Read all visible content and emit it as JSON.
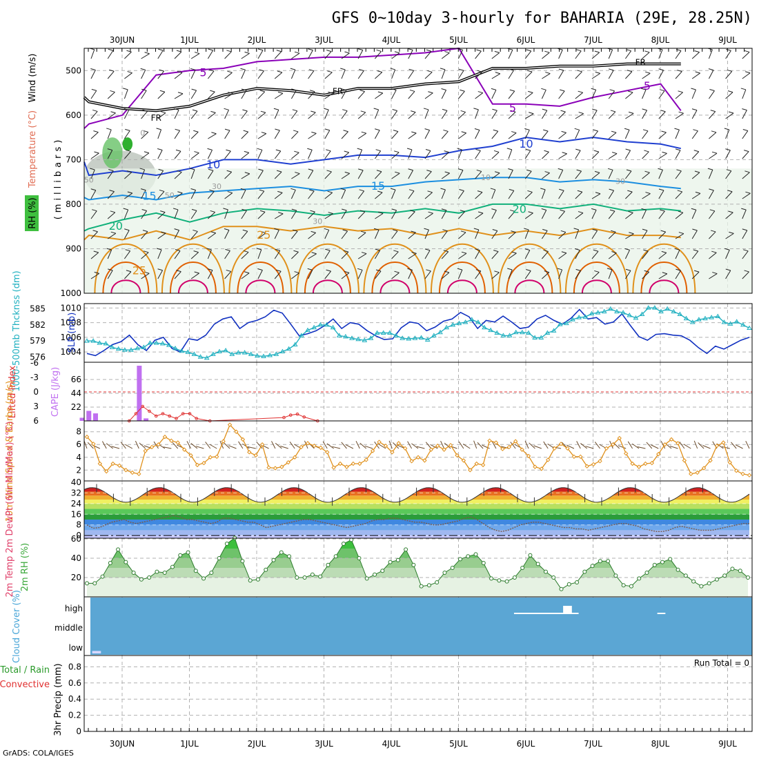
{
  "title": "GFS 0~10day 3-hourly for BAHARIA (29E, 28.25N)",
  "credit": "GrADS: COLA/IGES",
  "run_total": "Run Total = 0",
  "colors": {
    "purple": "#8a00b8",
    "black": "#000000",
    "blue": "#1f3fd0",
    "lightblue": "#1a8ee0",
    "teal": "#10b07a",
    "orange": "#e0901a",
    "darkorange": "#e06000",
    "magenta": "#d0006a",
    "slp": "#1030c0",
    "thk": "#20b0c0",
    "cape": "#c070f0",
    "li": "#e03030",
    "wind": "#e0901a",
    "rh": "#3aa83a",
    "cloud": "#5ba6d4"
  },
  "chart_data": [
    {
      "type": "contour",
      "panel": "upper-air",
      "xlabels": [
        "30JUN",
        "1JUL",
        "2JUL",
        "3JUL",
        "4JUL",
        "5JUL",
        "6JUL",
        "7JUL",
        "8JUL",
        "9JUL"
      ],
      "ylabel": "(millibars)",
      "legend_left": [
        "RH (%)",
        "Temperature (°C)",
        "Wind (m/s)"
      ],
      "yticks": [
        "500",
        "600",
        "700",
        "800",
        "900",
        "1000"
      ],
      "ylim": [
        450,
        1000
      ],
      "contour_labels": [
        {
          "text": "5",
          "day": 2.2,
          "p": 505
        },
        {
          "text": "5",
          "day": 6.8,
          "p": 585
        },
        {
          "text": "5",
          "day": 8.8,
          "p": 535
        },
        {
          "text": "FR",
          "day": 4.2,
          "p": 545
        },
        {
          "text": "FR",
          "day": 1.5,
          "p": 605
        },
        {
          "text": "FR",
          "day": 8.7,
          "p": 480
        },
        {
          "text": "10",
          "day": 2.35,
          "p": 712
        },
        {
          "text": "10",
          "day": 7.0,
          "p": 665
        },
        {
          "text": "15",
          "day": 1.4,
          "p": 782
        },
        {
          "text": "15",
          "day": 4.8,
          "p": 760
        },
        {
          "text": "20",
          "day": 0.9,
          "p": 850
        },
        {
          "text": "20",
          "day": 6.9,
          "p": 812
        },
        {
          "text": "25",
          "day": 3.1,
          "p": 870
        },
        {
          "text": "25",
          "day": 1.25,
          "p": 950
        }
      ],
      "series": [
        {
          "name": "5",
          "color": "purple",
          "days": [
            0,
            0.5,
            1,
            1.5,
            2,
            2.5,
            3,
            3.5,
            4,
            4.5,
            5,
            5.5,
            6,
            6.5,
            7,
            7.5,
            8,
            8.5,
            9,
            9.3
          ],
          "p": [
            630,
            620,
            600,
            510,
            500,
            495,
            480,
            475,
            470,
            470,
            465,
            460,
            450,
            575,
            575,
            580,
            560,
            545,
            530,
            590
          ]
        },
        {
          "name": "FR",
          "color": "black",
          "days": [
            0,
            0.5,
            1,
            1.5,
            2,
            2.5,
            3,
            3.5,
            4,
            4.5,
            5,
            5.5,
            6,
            6.5,
            7,
            7.5,
            8,
            8.5,
            9,
            9.3
          ],
          "p": [
            560,
            570,
            585,
            590,
            580,
            555,
            540,
            545,
            555,
            540,
            540,
            530,
            525,
            495,
            495,
            490,
            490,
            485,
            485,
            485
          ]
        },
        {
          "name": "10",
          "color": "blue",
          "days": [
            0,
            0.5,
            1,
            1.5,
            2,
            2.5,
            3,
            3.5,
            4,
            4.5,
            5,
            5.5,
            6,
            6.5,
            7,
            7.5,
            8,
            8.5,
            9,
            9.3
          ],
          "p": [
            705,
            735,
            725,
            735,
            720,
            700,
            700,
            710,
            700,
            690,
            690,
            695,
            680,
            670,
            650,
            660,
            650,
            660,
            665,
            675
          ]
        },
        {
          "name": "15",
          "color": "lightblue",
          "days": [
            0,
            0.5,
            1,
            1.5,
            2,
            2.5,
            3,
            3.5,
            4,
            4.5,
            5,
            5.5,
            6,
            6.5,
            7,
            7.5,
            8,
            8.5,
            9,
            9.3
          ],
          "p": [
            785,
            790,
            780,
            790,
            775,
            770,
            765,
            760,
            770,
            760,
            760,
            750,
            745,
            740,
            740,
            750,
            745,
            750,
            760,
            765
          ]
        },
        {
          "name": "20",
          "color": "teal",
          "days": [
            0,
            0.5,
            1,
            1.5,
            2,
            2.5,
            3,
            3.5,
            4,
            4.5,
            5,
            5.5,
            6,
            6.5,
            7,
            7.5,
            8,
            8.5,
            9,
            9.3
          ],
          "p": [
            860,
            855,
            835,
            820,
            840,
            820,
            810,
            815,
            825,
            815,
            820,
            810,
            820,
            800,
            800,
            810,
            800,
            815,
            810,
            815
          ]
        },
        {
          "name": "25",
          "color": "orange",
          "days": [
            0,
            0.5,
            1,
            1.5,
            2,
            2.5,
            3,
            3.5,
            4,
            4.5,
            5,
            5.5,
            6,
            6.5,
            7,
            7.5,
            8,
            8.5,
            9,
            9.3
          ],
          "p": [
            880,
            870,
            880,
            860,
            880,
            850,
            850,
            860,
            850,
            860,
            855,
            870,
            855,
            870,
            860,
            870,
            855,
            870,
            870,
            875
          ]
        }
      ],
      "rh_areas": [
        {
          "level": "dark",
          "day0": 0.2,
          "day1": 1.5,
          "p0": 680,
          "p1": 790
        },
        {
          "level": "mid",
          "day0": 0.7,
          "day1": 1.0,
          "p0": 650,
          "p1": 720
        },
        {
          "level": "core",
          "day0": 1.0,
          "day1": 1.15,
          "p0": 650,
          "p1": 680
        },
        {
          "level": "light",
          "day0": 0,
          "day1": 9.3,
          "p0": 720,
          "p1": 1000
        }
      ],
      "rh_labels": [
        {
          "text": "50",
          "day": 0.5,
          "p": 745
        },
        {
          "text": "30",
          "day": 2.4,
          "p": 760
        },
        {
          "text": "50",
          "day": 1.7,
          "p": 780
        },
        {
          "text": "30",
          "day": 3.9,
          "p": 838
        },
        {
          "text": "30",
          "day": 8.4,
          "p": 748
        },
        {
          "text": "10",
          "day": 6.4,
          "p": 740
        },
        {
          "text": "0",
          "day": 1.3,
          "p": 640
        }
      ]
    },
    {
      "type": "line",
      "panel": "thickness-slp",
      "ylabel_left": "1000-500mb Thcknss (dm)",
      "ylabel_right": "SLP (mb)",
      "yticks_left": [
        "576",
        "579",
        "582",
        "585"
      ],
      "yticks_slp": [
        "1004",
        "1006",
        "1008",
        "1010"
      ],
      "ylim_slp": [
        1002.6,
        1010.6
      ],
      "ylim_thk": [
        575,
        586
      ],
      "series": [
        {
          "name": "SLP",
          "color": "slp",
          "values": [
            1003.8,
            1003.5,
            1004.2,
            1005.0,
            1005.4,
            1006.3,
            1005.0,
            1004.2,
            1005.6,
            1006.0,
            1004.5,
            1004.0,
            1005.8,
            1005.6,
            1006.3,
            1007.8,
            1008.5,
            1008.8,
            1007.2,
            1008.0,
            1008.3,
            1008.8,
            1009.7,
            1009.3,
            1007.8,
            1006.2,
            1006.5,
            1006.9,
            1007.6,
            1008.5,
            1007.2,
            1008.0,
            1007.8,
            1006.9,
            1006.2,
            1005.7,
            1005.8,
            1007.3,
            1008.1,
            1007.9,
            1006.9,
            1007.4,
            1008.2,
            1008.5,
            1009.4,
            1008.8,
            1007.2,
            1008.3,
            1008.1,
            1008.9,
            1008.1,
            1007.2,
            1007.4,
            1008.5,
            1009.0,
            1008.3,
            1007.8,
            1008.6,
            1009.8,
            1008.5,
            1008.7,
            1007.8,
            1008.1,
            1009.2,
            1007.6,
            1006.1,
            1005.6,
            1006.4,
            1006.5,
            1006.3,
            1006.2,
            1005.6,
            1004.6,
            1003.8,
            1004.8,
            1004.4,
            1005.0,
            1005.6,
            1006.0
          ]
        },
        {
          "name": "Thickness",
          "color": "thk",
          "values": [
            579.0,
            579.0,
            578.6,
            578.5,
            577.8,
            577.5,
            577.3,
            577.3,
            577.6,
            577.8,
            578.6,
            578.6,
            578.5,
            578.2,
            577.6,
            577.1,
            576.9,
            576.5,
            576.0,
            575.8,
            576.5,
            577.0,
            577.2,
            576.5,
            576.8,
            576.8,
            576.5,
            576.2,
            576.1,
            576.3,
            576.5,
            577.0,
            577.5,
            578.3,
            580.0,
            581.0,
            581.5,
            582.0,
            582.0,
            581.5,
            580.0,
            579.8,
            579.5,
            579.3,
            579.1,
            579.5,
            580.5,
            580.5,
            580.5,
            580.0,
            579.5,
            579.4,
            579.5,
            579.6,
            579.2,
            580.0,
            580.6,
            581.5,
            582.0,
            582.3,
            582.5,
            583.0,
            582.5,
            581.5,
            581.0,
            580.5,
            580.0,
            580.0,
            580.6,
            580.6,
            580.5,
            579.6,
            579.6,
            580.5,
            580.9,
            582.1,
            582.3,
            583.0,
            583.4,
            583.5,
            584.1,
            584.3,
            584.5,
            585.0,
            584.5,
            584.3,
            583.8,
            583.3,
            584.0,
            585.2,
            585.2,
            584.5,
            585.0,
            584.5,
            584.0,
            583.2,
            582.5,
            583.0,
            583.2,
            583.4,
            583.6,
            582.5,
            582.2,
            582.6,
            582.0,
            581.4
          ]
        }
      ]
    },
    {
      "type": "bar",
      "panel": "cape-li",
      "ylabel_left": "Lifted Index",
      "ylabel_right": "CAPE (J/kg)",
      "yticks_li": [
        "6",
        "3",
        "0",
        "-3",
        "-6"
      ],
      "yticks_cape": [
        "22",
        "44",
        "66"
      ],
      "cape": [
        {
          "day": 0.4,
          "value": 5
        },
        {
          "day": 0.5,
          "value": 16
        },
        {
          "day": 0.6,
          "value": 12
        },
        {
          "day": 1.25,
          "value": 88
        },
        {
          "day": 1.35,
          "value": 4
        }
      ],
      "li": [
        {
          "day": 1.1,
          "value": 6
        },
        {
          "day": 1.2,
          "value": 4.5
        },
        {
          "day": 1.3,
          "value": 3
        },
        {
          "day": 1.4,
          "value": 4
        },
        {
          "day": 1.5,
          "value": 5
        },
        {
          "day": 1.6,
          "value": 4.5
        },
        {
          "day": 1.7,
          "value": 5
        },
        {
          "day": 1.8,
          "value": 5.5
        },
        {
          "day": 1.9,
          "value": 4.5
        },
        {
          "day": 2.0,
          "value": 4.5
        },
        {
          "day": 2.1,
          "value": 5.5
        },
        {
          "day": 2.3,
          "value": 6
        },
        {
          "day": 3.4,
          "value": 5.3
        },
        {
          "day": 3.5,
          "value": 4.8
        },
        {
          "day": 3.6,
          "value": 4.6
        },
        {
          "day": 3.7,
          "value": 5.2
        },
        {
          "day": 3.9,
          "value": 6
        }
      ]
    },
    {
      "type": "line",
      "panel": "wind10m",
      "ylabel": "10m Wind Speed & Barbs (m/s)",
      "yticks": [
        "2",
        "4",
        "6",
        "8"
      ],
      "ylim": [
        0.3,
        9.7
      ],
      "values": [
        7.2,
        6.1,
        3.0,
        1.8,
        3.0,
        2.7,
        2.0,
        1.6,
        1.4,
        5.0,
        5.6,
        6.0,
        7.2,
        6.6,
        6.3,
        5.2,
        4.3,
        2.8,
        3.1,
        4.0,
        4.1,
        6.5,
        9.1,
        8.0,
        6.8,
        4.8,
        4.3,
        6.0,
        2.4,
        2.3,
        2.5,
        3.2,
        4.0,
        5.6,
        6.2,
        5.8,
        5.5,
        4.8,
        2.4,
        3.0,
        2.5,
        3.0,
        3.0,
        3.6,
        5.0,
        6.4,
        5.8,
        4.8,
        6.2,
        5.4,
        3.4,
        4.0,
        3.5,
        5.2,
        5.8,
        5.2,
        5.9,
        4.3,
        3.5,
        2.0,
        3.0,
        2.8,
        6.6,
        6.3,
        5.3,
        5.6,
        6.5,
        5.2,
        4.2,
        2.5,
        2.2,
        3.6,
        5.4,
        6.1,
        5.4,
        4.1,
        4.1,
        2.6,
        2.9,
        3.4,
        5.4,
        6.0,
        7.0,
        4.6,
        3.0,
        2.5,
        3.0,
        3.1,
        4.5,
        6.0,
        6.8,
        6.2,
        3.5,
        1.4,
        1.6,
        2.3,
        3.5,
        5.8,
        6.3,
        3.2,
        1.9,
        1.4,
        1.2
      ]
    },
    {
      "type": "area",
      "panel": "temp2m",
      "ylabel": "2m Temp 2m DewPt (6hr Min/Max) (°C)",
      "yticks": [
        "0",
        "8",
        "16",
        "24",
        "32",
        "40"
      ],
      "ylim": [
        -2,
        41
      ],
      "temp_min": 25,
      "temp_max": 36,
      "dewpt": [
        8,
        5.5,
        6,
        8,
        10,
        11,
        12,
        10,
        9,
        10,
        11,
        12,
        13,
        14,
        15,
        14,
        12,
        12,
        11,
        10,
        9,
        10,
        13,
        13,
        12,
        11,
        10,
        10,
        8,
        6,
        7,
        8,
        9,
        10,
        11,
        12,
        12,
        11,
        10,
        9,
        8,
        7,
        6,
        7,
        8,
        9,
        11,
        12,
        12,
        13,
        13,
        12,
        11,
        10,
        10,
        9,
        8,
        8,
        9,
        10,
        11,
        13,
        14,
        12,
        9,
        6,
        4,
        3,
        4,
        6,
        8,
        9,
        10,
        10,
        9,
        8,
        7,
        6,
        6,
        5,
        5,
        4,
        5,
        6,
        7,
        8,
        9,
        9,
        8,
        7,
        5,
        4,
        3,
        3,
        4,
        6,
        7,
        6,
        5,
        4,
        4,
        4,
        5,
        6,
        7,
        8,
        9,
        9
      ]
    },
    {
      "type": "area",
      "panel": "rh2m",
      "ylabel": "2m RH (%)",
      "yticks": [
        "20",
        "40",
        "60"
      ],
      "ylim": [
        0,
        60
      ],
      "values": [
        14,
        14,
        21,
        35,
        49,
        36,
        25,
        18,
        20,
        26,
        25,
        31,
        43,
        46,
        27,
        19,
        25,
        40,
        55,
        61,
        37,
        17,
        18,
        28,
        38,
        46,
        42,
        20,
        20,
        23,
        21,
        33,
        42,
        55,
        59,
        40,
        19,
        23,
        27,
        36,
        38,
        49,
        33,
        11,
        12,
        15,
        25,
        30,
        39,
        42,
        44,
        35,
        19,
        17,
        16,
        20,
        30,
        43,
        34,
        26,
        20,
        8,
        13,
        15,
        26,
        32,
        37,
        37,
        22,
        12,
        11,
        19,
        25,
        33,
        36,
        39,
        28,
        22,
        16,
        11,
        14,
        18,
        22,
        29,
        27,
        20
      ]
    },
    {
      "type": "bar",
      "panel": "cloud",
      "ylabel": "Cloud Cover (%)",
      "levels": [
        "high",
        "middle",
        "low"
      ],
      "blocks": [
        {
          "level": "high",
          "day0": 6.82,
          "day1": 7.78,
          "amount": 4
        },
        {
          "level": "high",
          "day0": 7.55,
          "day1": 7.68,
          "amount": 40
        },
        {
          "level": "high",
          "day0": 8.95,
          "day1": 9.07,
          "amount": 3
        },
        {
          "level": "low",
          "day0": 0.55,
          "day1": 0.68,
          "amount": 12
        }
      ]
    },
    {
      "type": "bar",
      "panel": "precip",
      "ylabel_left": "Total / Rain Convective",
      "ylabel": "3hr Precip (mm)",
      "yticks": [
        "0",
        "0.2",
        "0.4",
        "0.6",
        "0.8"
      ],
      "ylim": [
        0,
        0.94
      ],
      "values": []
    }
  ]
}
